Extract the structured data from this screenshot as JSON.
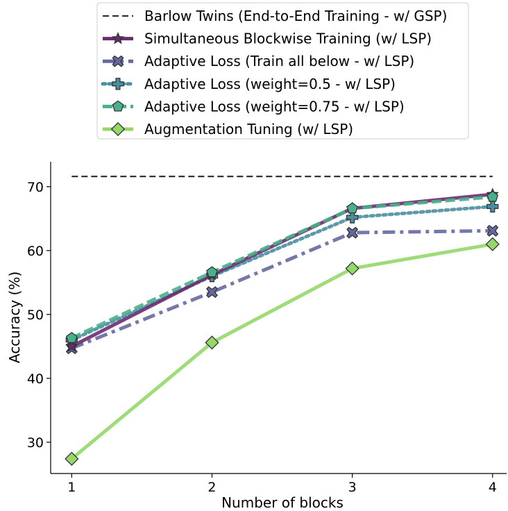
{
  "chart_data": {
    "type": "line",
    "title": "",
    "xlabel": "Number of blocks",
    "ylabel": "Accuracy (%)",
    "x": [
      1,
      2,
      3,
      4
    ],
    "xlim": [
      0.85,
      4.1
    ],
    "ylim": [
      25.1,
      73.9
    ],
    "xticks": [
      "1",
      "2",
      "3",
      "4"
    ],
    "yticks": [
      "30",
      "40",
      "50",
      "60",
      "70"
    ],
    "grid": false,
    "legend_position": "top-center, above plot",
    "series": [
      {
        "name": "Barlow Twins (End-to-End Training - w/ GSP)",
        "values": [
          71.6,
          71.6,
          71.6,
          71.6
        ],
        "color": "#333333",
        "linestyle": "dashed",
        "marker": "none"
      },
      {
        "name": "Simultaneous Blockwise Training (w/ LSP)",
        "values": [
          45.0,
          56.2,
          66.6,
          68.8
        ],
        "color": "#6a2c70",
        "linestyle": "solid",
        "marker": "star"
      },
      {
        "name": "Adaptive Loss (Train all below - w/ LSP)",
        "values": [
          44.7,
          53.5,
          62.8,
          63.1
        ],
        "color": "#6668a0",
        "linestyle": "dashdot",
        "marker": "x"
      },
      {
        "name": "Adaptive Loss (weight=0.5 - w/ LSP)",
        "values": [
          46.0,
          56.0,
          65.2,
          66.9
        ],
        "color": "#4a8fa0",
        "linestyle": "dotted",
        "marker": "plus"
      },
      {
        "name": "Adaptive Loss (weight=0.75 - w/ LSP)",
        "values": [
          46.3,
          56.6,
          66.6,
          68.4
        ],
        "color": "#48b08a",
        "linestyle": "dashed",
        "marker": "pentagon"
      },
      {
        "name": "Augmentation Tuning (w/ LSP)",
        "values": [
          27.4,
          45.6,
          57.2,
          61.0
        ],
        "color": "#94d86a",
        "linestyle": "solid",
        "marker": "diamond"
      }
    ]
  }
}
